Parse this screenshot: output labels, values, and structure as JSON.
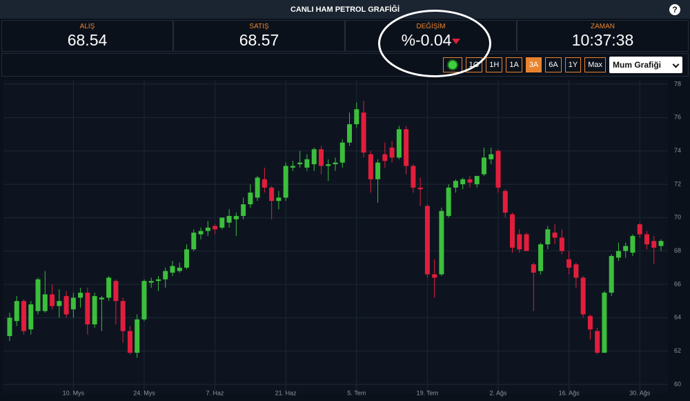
{
  "header": {
    "title": "CANLI HAM PETROL GRAFİĞİ",
    "help": "?"
  },
  "quotes": [
    {
      "label": "ALIŞ",
      "value": "68.54"
    },
    {
      "label": "SATIŞ",
      "value": "68.57"
    },
    {
      "label": "DEĞİŞİM",
      "value": "%-0.04"
    },
    {
      "label": "ZAMAN",
      "value": "10:37:38"
    }
  ],
  "toolbar": {
    "buttons": [
      "1G",
      "1H",
      "1A",
      "3A",
      "6A",
      "1Y",
      "Max"
    ],
    "active": "3A",
    "chart_select": "Mum Grafiği"
  },
  "chart_data": {
    "type": "candlestick",
    "categories": [
      null,
      null,
      null,
      null,
      null,
      null,
      null,
      null,
      null,
      "10. Mys",
      null,
      null,
      null,
      null,
      null,
      null,
      null,
      null,
      null,
      "24. Mys",
      null,
      null,
      null,
      null,
      null,
      null,
      null,
      null,
      null,
      "7. Haz",
      null,
      null,
      null,
      null,
      null,
      null,
      null,
      null,
      null,
      "21. Haz",
      null,
      null,
      null,
      null,
      null,
      null,
      null,
      null,
      null,
      "5. Tem",
      null,
      null,
      null,
      null,
      null,
      null,
      null,
      null,
      null,
      "19. Tem",
      null,
      null,
      null,
      null,
      null,
      null,
      null,
      null,
      null,
      "2. Ağs",
      null,
      null,
      null,
      null,
      null,
      null,
      null,
      null,
      null,
      "16. Ağs",
      null,
      null,
      null,
      null,
      null,
      null,
      null,
      null,
      null,
      "30. Ağs",
      null,
      null,
      null
    ],
    "open": [
      62.9,
      63.8,
      65.0,
      63.3,
      64.4,
      64.4,
      65.4,
      64.7,
      65.3,
      64.5,
      65.2,
      65.5,
      63.6,
      65.1,
      65.2,
      66.2,
      65.0,
      63.2,
      61.9,
      63.9,
      66.1,
      66.2,
      66.3,
      66.7,
      66.8,
      67.0,
      68.1,
      69.0,
      69.2,
      69.5,
      69.4,
      69.7,
      69.9,
      70.1,
      70.8,
      71.2,
      72.3,
      71.8,
      71.0,
      71.2,
      73.0,
      73.2,
      73.0,
      73.2,
      74.1,
      73.1,
      73.2,
      73.3,
      74.5,
      75.6,
      76.3,
      73.8,
      72.3,
      73.8,
      74.2,
      73.6,
      75.3,
      73.1,
      71.8,
      70.7,
      66.6,
      66.6,
      70.1,
      71.8,
      72.0,
      72.3,
      72.0,
      72.6,
      73.5,
      74.0,
      71.6,
      70.2,
      69.0,
      69.0,
      67.2,
      66.8,
      68.4,
      69.1,
      68.8,
      67.5,
      67.2,
      66.4,
      64.1,
      63.2,
      61.9,
      65.5,
      67.6,
      68.0,
      67.9,
      69.6,
      69.0,
      68.6,
      68.3
    ],
    "high": [
      64.3,
      65.3,
      65.1,
      65.0,
      66.4,
      66.8,
      66.0,
      65.7,
      65.6,
      65.5,
      65.8,
      65.8,
      65.5,
      65.3,
      66.5,
      66.3,
      65.2,
      63.5,
      64.2,
      66.3,
      66.4,
      66.5,
      67.0,
      67.4,
      67.3,
      68.4,
      69.3,
      69.4,
      69.8,
      69.6,
      70.0,
      70.5,
      70.3,
      71.2,
      72.0,
      72.5,
      73.0,
      71.9,
      71.6,
      73.3,
      73.4,
      74.0,
      73.8,
      74.2,
      74.3,
      73.5,
      73.6,
      74.7,
      76.3,
      76.9,
      77.0,
      74.0,
      73.5,
      74.5,
      74.6,
      75.5,
      75.5,
      73.2,
      72.4,
      70.8,
      67.5,
      70.6,
      72.0,
      72.3,
      72.4,
      72.5,
      72.5,
      74.2,
      74.2,
      74.1,
      71.7,
      70.3,
      69.3,
      69.1,
      67.3,
      68.5,
      69.5,
      69.6,
      69.3,
      68.0,
      67.3,
      66.5,
      64.2,
      63.4,
      65.6,
      67.8,
      68.5,
      68.5,
      69.0,
      69.7,
      69.2,
      68.9,
      68.7
    ],
    "low": [
      62.6,
      63.5,
      63.0,
      63.0,
      64.2,
      64.3,
      64.5,
      64.0,
      64.0,
      64.0,
      64.6,
      63.0,
      63.4,
      63.2,
      65.0,
      63.6,
      62.5,
      61.8,
      61.6,
      63.8,
      65.8,
      65.6,
      65.8,
      66.5,
      66.7,
      66.9,
      68.0,
      68.7,
      68.9,
      69.0,
      69.3,
      69.4,
      68.9,
      69.9,
      70.6,
      71.0,
      71.5,
      69.9,
      70.5,
      71.0,
      72.8,
      73.0,
      72.8,
      72.8,
      72.6,
      72.2,
      72.8,
      73.0,
      74.3,
      75.4,
      73.6,
      71.5,
      70.9,
      73.0,
      73.3,
      73.5,
      72.6,
      71.5,
      70.7,
      66.4,
      65.2,
      66.5,
      70.0,
      71.5,
      71.7,
      71.8,
      71.8,
      72.5,
      73.2,
      71.5,
      70.0,
      67.9,
      67.9,
      68.0,
      64.4,
      66.6,
      68.1,
      68.4,
      67.8,
      66.6,
      65.8,
      64.0,
      62.7,
      61.8,
      61.9,
      65.3,
      67.4,
      67.6,
      67.7,
      68.8,
      68.1,
      67.2,
      68.0
    ],
    "close": [
      64.0,
      65.0,
      63.2,
      64.8,
      66.3,
      65.4,
      64.7,
      65.0,
      64.2,
      65.2,
      65.5,
      63.6,
      65.3,
      65.2,
      66.4,
      65.0,
      63.2,
      61.9,
      63.9,
      66.2,
      66.2,
      66.3,
      66.8,
      67.1,
      67.0,
      68.1,
      69.1,
      69.2,
      69.4,
      69.3,
      70.0,
      70.1,
      70.1,
      70.8,
      71.5,
      72.4,
      71.8,
      71.0,
      71.2,
      73.1,
      73.1,
      73.3,
      73.5,
      74.1,
      73.1,
      73.2,
      73.3,
      74.5,
      75.6,
      76.5,
      73.9,
      72.3,
      73.3,
      73.4,
      73.6,
      75.3,
      73.1,
      71.8,
      71.7,
      66.6,
      66.4,
      70.4,
      71.8,
      72.2,
      72.3,
      72.1,
      72.5,
      73.6,
      73.8,
      71.8,
      70.3,
      68.2,
      68.1,
      68.0,
      66.7,
      68.4,
      69.3,
      68.8,
      68.0,
      67.0,
      66.4,
      64.2,
      63.3,
      61.9,
      65.5,
      67.7,
      68.0,
      68.3,
      68.9,
      69.0,
      68.4,
      68.2,
      68.6
    ],
    "up_color": "#3cbf3c",
    "down_color": "#e21e3c",
    "ylim": [
      60,
      78
    ],
    "yticks": [
      60,
      62,
      64,
      66,
      68,
      70,
      72,
      74,
      76,
      78
    ],
    "grid": true
  }
}
